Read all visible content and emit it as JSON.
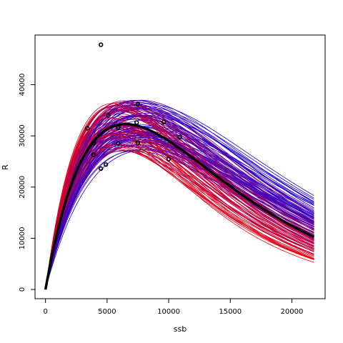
{
  "chart_data": {
    "type": "scatter",
    "title": "",
    "xlabel": "ssb",
    "ylabel": "R",
    "xlim": [
      -850,
      22700
    ],
    "ylim": [
      -1800,
      49700
    ],
    "x_ticks": [
      0,
      5000,
      10000,
      15000,
      20000
    ],
    "y_ticks": [
      0,
      10000,
      20000,
      30000,
      40000
    ],
    "grid": false,
    "legend": "none",
    "points": [
      {
        "x": 4500,
        "y": 47800
      },
      {
        "x": 7500,
        "y": 36200
      },
      {
        "x": 5100,
        "y": 34000
      },
      {
        "x": 7400,
        "y": 32600
      },
      {
        "x": 9600,
        "y": 32700
      },
      {
        "x": 3400,
        "y": 31500
      },
      {
        "x": 5900,
        "y": 31600
      },
      {
        "x": 10900,
        "y": 29800
      },
      {
        "x": 3900,
        "y": 28600
      },
      {
        "x": 5900,
        "y": 28500
      },
      {
        "x": 7500,
        "y": 28600
      },
      {
        "x": 3900,
        "y": 26300
      },
      {
        "x": 10000,
        "y": 25500
      },
      {
        "x": 4900,
        "y": 24400
      },
      {
        "x": 4500,
        "y": 23600
      }
    ],
    "fit_curve": {
      "model": "ricker",
      "peak_ssb": 6500,
      "peak_r": 32300,
      "x_max": 21800,
      "color": "#000000"
    },
    "bootstrap_curves": {
      "count": 140,
      "peak_ssb_range": [
        5200,
        8400
      ],
      "peak_r_range": [
        27000,
        37000
      ],
      "color_from": "#ff0000",
      "color_to": "#0000ff"
    }
  }
}
